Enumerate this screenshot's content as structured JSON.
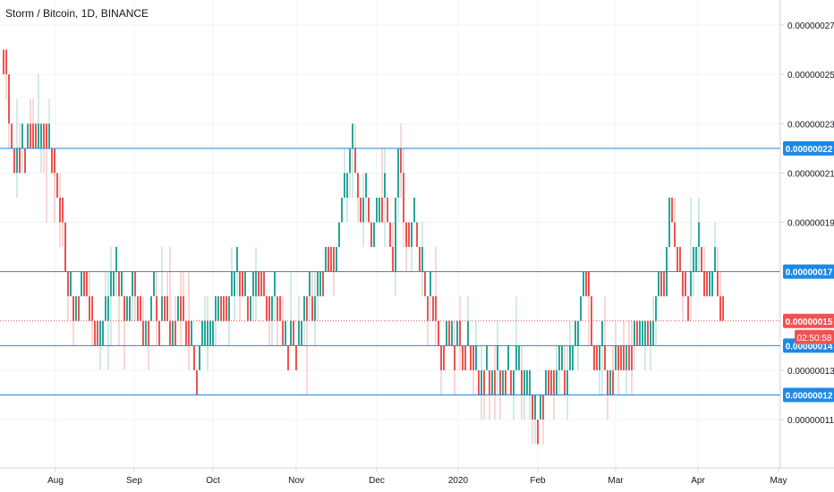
{
  "chart_data": {
    "type": "candlestick",
    "title": "Storm / Bitcoin, 1D, BINANCE",
    "y_axis_labels": [
      "0.00000027",
      "0.00000025",
      "0.00000023",
      "0.00000021",
      "0.00000019",
      "0.00000013",
      "0.00000011"
    ],
    "ylim": [
      9.6e-08,
      2.8e-07
    ],
    "x_labels": [
      "Aug",
      "Sep",
      "Oct",
      "Nov",
      "Dec",
      "2020",
      "Feb",
      "Mar",
      "Apr",
      "May"
    ],
    "horizontal_levels": [
      {
        "label": "0.00000022",
        "value": 2.2e-07,
        "color": "#1e88e5"
      },
      {
        "label": "0.00000017",
        "value": 1.7e-07,
        "color": "#1e88e5"
      },
      {
        "label": "0.00000014",
        "value": 1.4e-07,
        "color": "#1e88e5"
      },
      {
        "label": "0.00000012",
        "value": 1.2e-07,
        "color": "#1e88e5"
      }
    ],
    "current_price": {
      "label": "0.00000015",
      "value": 1.5e-07,
      "countdown": "02:50:58",
      "color": "#ef5350"
    },
    "colors": {
      "up": "#26a69a",
      "down": "#ef5350",
      "wick_up": "#a5d6d1",
      "wick_down": "#f5b0ae",
      "grid": "#f0f3fa",
      "axis_text": "#131722"
    },
    "close_path": [
      [
        0,
        2.6e-07
      ],
      [
        4,
        2.6e-07
      ],
      [
        8,
        2.3e-07
      ],
      [
        14,
        2.1e-07
      ],
      [
        20,
        2.2e-07
      ],
      [
        26,
        2.2e-07
      ],
      [
        32,
        2.3e-07
      ],
      [
        40,
        2.2e-07
      ],
      [
        47,
        2.3e-07
      ],
      [
        54,
        2.2e-07
      ],
      [
        60,
        2.1e-07
      ],
      [
        64,
        2e-07
      ],
      [
        68,
        1.9e-07
      ],
      [
        72,
        1.7e-07
      ],
      [
        76,
        1.6e-07
      ],
      [
        80,
        1.5e-07
      ],
      [
        86,
        1.6e-07
      ],
      [
        92,
        1.7e-07
      ],
      [
        98,
        1.6e-07
      ],
      [
        104,
        1.5e-07
      ],
      [
        110,
        1.4e-07
      ],
      [
        116,
        1.5e-07
      ],
      [
        122,
        1.6e-07
      ],
      [
        128,
        1.7e-07
      ],
      [
        134,
        1.6e-07
      ],
      [
        140,
        1.5e-07
      ],
      [
        146,
        1.7e-07
      ],
      [
        152,
        1.6e-07
      ],
      [
        158,
        1.4e-07
      ],
      [
        164,
        1.5e-07
      ],
      [
        170,
        1.6e-07
      ],
      [
        176,
        1.5e-07
      ],
      [
        182,
        1.6e-07
      ],
      [
        188,
        1.4e-07
      ],
      [
        194,
        1.5e-07
      ],
      [
        200,
        1.6e-07
      ],
      [
        206,
        1.5e-07
      ],
      [
        212,
        1.4e-07
      ],
      [
        218,
        1.3e-07
      ],
      [
        224,
        1.4e-07
      ],
      [
        232,
        1.4e-07
      ],
      [
        240,
        1.5e-07
      ],
      [
        246,
        1.6e-07
      ],
      [
        252,
        1.5e-07
      ],
      [
        258,
        1.6e-07
      ],
      [
        264,
        1.7e-07
      ],
      [
        270,
        1.6e-07
      ],
      [
        276,
        1.5e-07
      ],
      [
        282,
        1.6e-07
      ],
      [
        288,
        1.7e-07
      ],
      [
        294,
        1.6e-07
      ],
      [
        300,
        1.5e-07
      ],
      [
        306,
        1.6e-07
      ],
      [
        312,
        1.5e-07
      ],
      [
        318,
        1.4e-07
      ],
      [
        324,
        1.5e-07
      ],
      [
        330,
        1.4e-07
      ],
      [
        336,
        1.5e-07
      ],
      [
        342,
        1.6e-07
      ],
      [
        348,
        1.5e-07
      ],
      [
        354,
        1.6e-07
      ],
      [
        360,
        1.7e-07
      ],
      [
        366,
        1.8e-07
      ],
      [
        372,
        1.7e-07
      ],
      [
        378,
        1.9e-07
      ],
      [
        384,
        2e-07
      ],
      [
        390,
        2.2e-07
      ],
      [
        396,
        2.1e-07
      ],
      [
        402,
        1.9e-07
      ],
      [
        408,
        2e-07
      ],
      [
        414,
        1.8e-07
      ],
      [
        420,
        1.9e-07
      ],
      [
        426,
        2e-07
      ],
      [
        432,
        1.9e-07
      ],
      [
        438,
        1.7e-07
      ],
      [
        444,
        2.2e-07
      ],
      [
        450,
        1.9e-07
      ],
      [
        456,
        1.8e-07
      ],
      [
        462,
        1.9e-07
      ],
      [
        468,
        1.7e-07
      ],
      [
        474,
        1.6e-07
      ],
      [
        480,
        1.6e-07
      ],
      [
        486,
        1.5e-07
      ],
      [
        492,
        1.4e-07
      ],
      [
        498,
        1.5e-07
      ],
      [
        504,
        1.4e-07
      ],
      [
        510,
        1.5e-07
      ],
      [
        516,
        1.4e-07
      ],
      [
        522,
        1.4e-07
      ],
      [
        528,
        1.3e-07
      ],
      [
        534,
        1.2e-07
      ],
      [
        540,
        1.3e-07
      ],
      [
        546,
        1.2e-07
      ],
      [
        552,
        1.3e-07
      ],
      [
        558,
        1.2e-07
      ],
      [
        564,
        1.3e-07
      ],
      [
        570,
        1.2e-07
      ],
      [
        576,
        1.3e-07
      ],
      [
        582,
        1.2e-07
      ],
      [
        588,
        1.2e-07
      ],
      [
        594,
        1.1e-07
      ],
      [
        600,
        1.1e-07
      ],
      [
        606,
        1.2e-07
      ],
      [
        612,
        1.3e-07
      ],
      [
        618,
        1.2e-07
      ],
      [
        624,
        1.3e-07
      ],
      [
        630,
        1.2e-07
      ],
      [
        636,
        1.3e-07
      ],
      [
        642,
        1.4e-07
      ],
      [
        648,
        1.6e-07
      ],
      [
        654,
        1.7e-07
      ],
      [
        660,
        1.4e-07
      ],
      [
        666,
        1.3e-07
      ],
      [
        672,
        1.4e-07
      ],
      [
        678,
        1.2e-07
      ],
      [
        684,
        1.3e-07
      ],
      [
        690,
        1.4e-07
      ],
      [
        696,
        1.3e-07
      ],
      [
        702,
        1.4e-07
      ],
      [
        708,
        1.5e-07
      ],
      [
        714,
        1.4e-07
      ],
      [
        720,
        1.5e-07
      ],
      [
        726,
        1.4e-07
      ],
      [
        732,
        1.6e-07
      ],
      [
        738,
        1.7e-07
      ],
      [
        742,
        1.6e-07
      ],
      [
        746,
        2e-07
      ],
      [
        750,
        1.9e-07
      ],
      [
        754,
        1.8e-07
      ],
      [
        760,
        1.7e-07
      ],
      [
        766,
        1.6e-07
      ],
      [
        772,
        1.7e-07
      ],
      [
        778,
        1.8e-07
      ],
      [
        784,
        1.7e-07
      ],
      [
        790,
        1.6e-07
      ],
      [
        796,
        1.7e-07
      ],
      [
        802,
        1.6e-07
      ],
      [
        808,
        1.5e-07
      ]
    ]
  }
}
